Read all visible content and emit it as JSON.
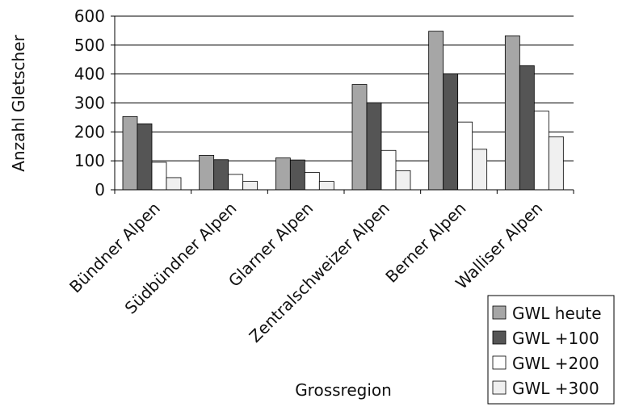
{
  "chart_data": {
    "type": "bar",
    "title": "",
    "xlabel": "Grossregion",
    "ylabel": "Anzahl Gletscher",
    "ylim": [
      0,
      600
    ],
    "yticks": [
      0,
      100,
      200,
      300,
      400,
      500,
      600
    ],
    "grid": true,
    "legend_position": "bottom-right",
    "categories": [
      "Bündner Alpen",
      "Südbündner Alpen",
      "Glarner Alpen",
      "Zentralschweizer Alpen",
      "Berner Alpen",
      "Walliser Alpen"
    ],
    "series": [
      {
        "name": "GWL heute",
        "color": "#a6a6a6",
        "values": [
          253,
          119,
          110,
          364,
          548,
          532
        ]
      },
      {
        "name": "GWL +100",
        "color": "#555555",
        "values": [
          228,
          104,
          103,
          301,
          401,
          429
        ]
      },
      {
        "name": "GWL +200",
        "color": "#ffffff",
        "values": [
          95,
          53,
          60,
          136,
          234,
          272
        ]
      },
      {
        "name": "GWL +300",
        "color": "#f0f0f0",
        "values": [
          42,
          29,
          29,
          66,
          140,
          183
        ]
      }
    ]
  }
}
